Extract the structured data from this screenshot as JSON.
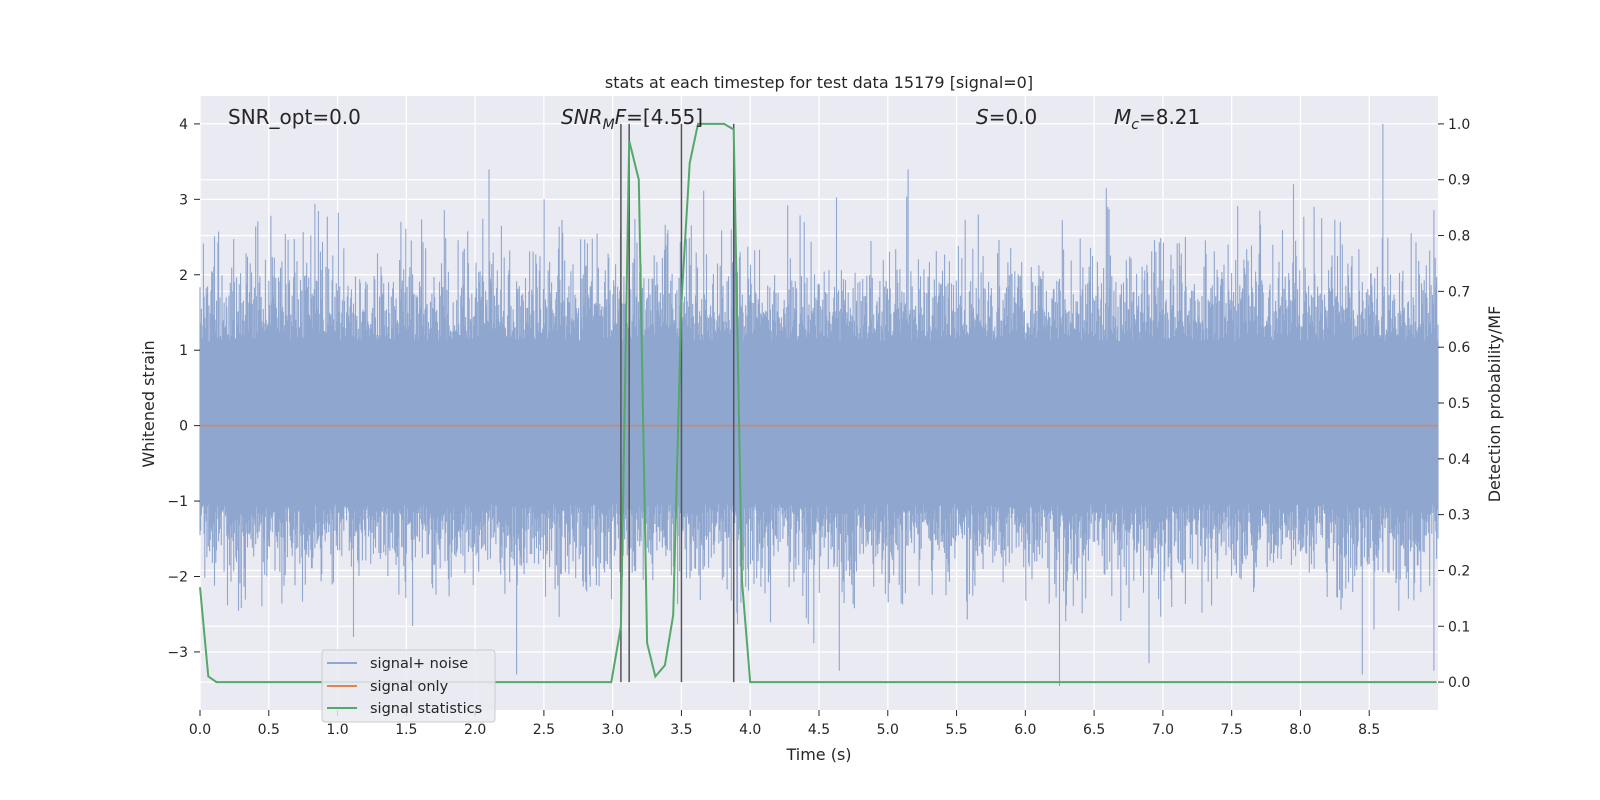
{
  "chart_data": {
    "type": "line",
    "title": "stats at each timestep for test data 15179 [signal=0]",
    "xlabel": "Time (s)",
    "ylabel": "Whitened strain",
    "ylabel_right": "Detection probability/MF",
    "xlim": [
      0,
      9.0
    ],
    "ylim": [
      -3.77,
      4.37
    ],
    "ylim_right": [
      -0.05,
      1.05
    ],
    "x_ticks": [
      0.0,
      0.5,
      1.0,
      1.5,
      2.0,
      2.5,
      3.0,
      3.5,
      4.0,
      4.5,
      5.0,
      5.5,
      6.0,
      6.5,
      7.0,
      7.5,
      8.0,
      8.5
    ],
    "x_tick_labels": [
      "0.0",
      "0.5",
      "1.0",
      "1.5",
      "2.0",
      "2.5",
      "3.0",
      "3.5",
      "4.0",
      "4.5",
      "5.0",
      "5.5",
      "6.0",
      "6.5",
      "7.0",
      "7.5",
      "8.0",
      "8.5"
    ],
    "y_ticks": [
      4,
      3,
      2,
      1,
      0,
      -1,
      -2,
      -3
    ],
    "y_tick_labels": [
      "4",
      "3",
      "2",
      "1",
      "0",
      "−1",
      "−2",
      "−3"
    ],
    "y_right_ticks": [
      1.0,
      0.9,
      0.8,
      0.7,
      0.6,
      0.5,
      0.4,
      0.3,
      0.2,
      0.1,
      0.0
    ],
    "y_right_tick_labels": [
      "1.0",
      "0.9",
      "0.8",
      "0.7",
      "0.6",
      "0.5",
      "0.4",
      "0.3",
      "0.2",
      "0.1",
      "0.0"
    ],
    "grid": true,
    "legend": {
      "placement": "lower-left",
      "entries": [
        "signal+ noise",
        "signal only",
        "signal statistics"
      ]
    },
    "annotations": [
      {
        "text": "SNR_opt=0.0",
        "x": 0.2,
        "y": 4.0
      },
      {
        "text_parts": [
          {
            "t": "SNR",
            "i": true
          },
          {
            "t": "M",
            "i": true,
            "sub": true
          },
          {
            "t": "F",
            "i": true
          },
          {
            "t": "=[4.55]",
            "i": false
          }
        ],
        "x": 2.6,
        "y": 4.0
      },
      {
        "text_parts": [
          {
            "t": "S",
            "i": true
          },
          {
            "t": "=0.0",
            "i": false
          }
        ],
        "x": 5.6,
        "y": 4.0
      },
      {
        "text_parts": [
          {
            "t": "M",
            "i": true
          },
          {
            "t": "c",
            "i": true,
            "sub": true
          },
          {
            "t": "=8.21",
            "i": false
          }
        ],
        "x": 6.6,
        "y": 4.0
      }
    ],
    "vertical_lines_x": [
      3.06,
      3.12,
      3.5,
      3.88
    ],
    "signal_noise": {
      "name": "signal+ noise",
      "color": "#8fa6cf",
      "y_max": 4.0,
      "y_min": -3.45,
      "typical_range": [
        -1.3,
        1.4
      ],
      "peaks_x": [
        2.1,
        2.5,
        5.15,
        6.6,
        7.95,
        8.1,
        8.6
      ],
      "peaks_y": [
        3.4,
        3.0,
        3.4,
        2.9,
        3.2,
        2.9,
        4.0
      ],
      "troughs_x": [
        2.3,
        4.65,
        6.25,
        6.9,
        8.45,
        8.97
      ],
      "troughs_y": [
        -3.3,
        -3.25,
        -3.45,
        -3.15,
        -3.3,
        -3.25
      ]
    },
    "signal_only": {
      "name": "signal only",
      "color": "#dd8452",
      "values_y": 0.0
    },
    "signal_statistics": {
      "name": "signal statistics",
      "color": "#55a868",
      "x": [
        0.0,
        0.06,
        0.12,
        2.99,
        3.06,
        3.12,
        3.19,
        3.25,
        3.31,
        3.38,
        3.44,
        3.5,
        3.56,
        3.62,
        3.69,
        3.75,
        3.81,
        3.88,
        3.94,
        4.0,
        8.99
      ],
      "y": [
        0.17,
        0.01,
        0.0,
        0.0,
        0.1,
        0.97,
        0.9,
        0.07,
        0.01,
        0.03,
        0.12,
        0.68,
        0.93,
        1.0,
        1.0,
        1.0,
        1.0,
        0.99,
        0.18,
        0.0,
        0.0
      ]
    }
  }
}
